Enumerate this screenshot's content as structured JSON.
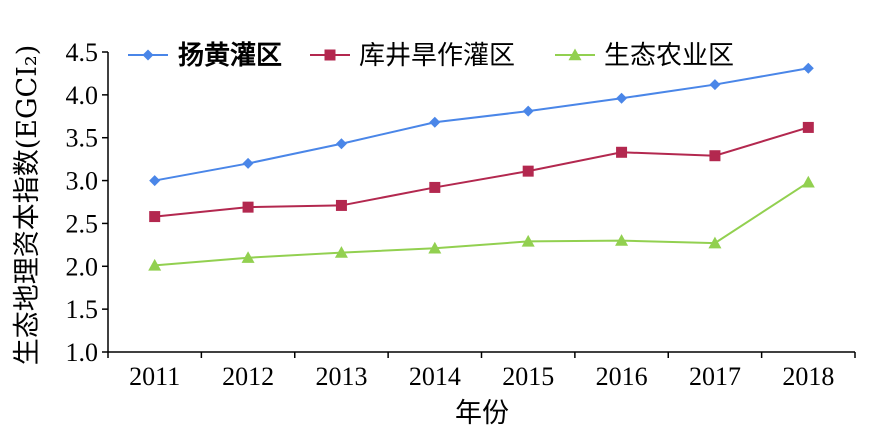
{
  "chart_data": {
    "type": "line",
    "title": "",
    "xlabel": "年份",
    "ylabel": "生态地理资本指数(EGCI₂)",
    "categories": [
      "2011",
      "2012",
      "2013",
      "2014",
      "2015",
      "2016",
      "2017",
      "2018"
    ],
    "y_ticks": [
      "1.0",
      "1.5",
      "2.0",
      "2.5",
      "3.0",
      "3.5",
      "4.0",
      "4.5"
    ],
    "ylim": [
      1.0,
      4.5
    ],
    "grid": false,
    "legend_position": "top",
    "series": [
      {
        "name": "扬黄灌区",
        "color": "#4a86e8",
        "marker": "diamond",
        "values": [
          3.0,
          3.2,
          3.43,
          3.68,
          3.81,
          3.96,
          4.12,
          4.31
        ]
      },
      {
        "name": "库井旱作灌区",
        "color": "#b3284f",
        "marker": "square",
        "values": [
          2.58,
          2.69,
          2.71,
          2.92,
          3.11,
          3.33,
          3.29,
          3.62
        ]
      },
      {
        "name": "生态农业区",
        "color": "#92d050",
        "marker": "triangle",
        "values": [
          2.01,
          2.1,
          2.16,
          2.21,
          2.29,
          2.3,
          2.27,
          2.98
        ]
      }
    ]
  }
}
